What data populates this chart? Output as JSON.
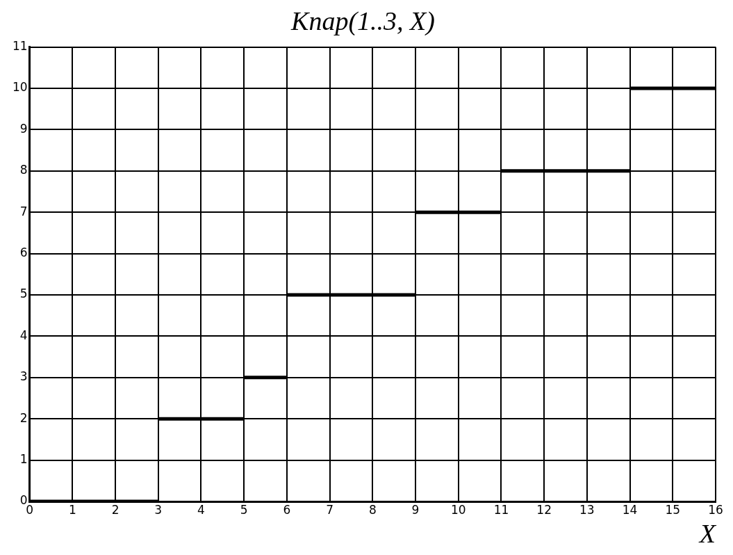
{
  "chart_data": {
    "type": "line",
    "title": "Knap(1..3, X)",
    "xlabel": "X",
    "xlim": [
      0,
      16
    ],
    "ylim": [
      0,
      11
    ],
    "xticks": [
      0,
      1,
      2,
      3,
      4,
      5,
      6,
      7,
      8,
      9,
      10,
      11,
      12,
      13,
      14,
      15,
      16
    ],
    "yticks": [
      0,
      1,
      2,
      3,
      4,
      5,
      6,
      7,
      8,
      9,
      10,
      11
    ],
    "grid": true,
    "marker": "none",
    "series": [
      {
        "color": "#000000",
        "x": [
          0,
          3
        ],
        "values": [
          0,
          0
        ]
      },
      {
        "color": "#000000",
        "x": [
          3,
          5
        ],
        "values": [
          2,
          2
        ]
      },
      {
        "color": "#000000",
        "x": [
          5,
          6
        ],
        "values": [
          3,
          3
        ]
      },
      {
        "color": "#000000",
        "x": [
          6,
          9
        ],
        "values": [
          5,
          5
        ]
      },
      {
        "color": "#000000",
        "x": [
          9,
          11
        ],
        "values": [
          7,
          7
        ]
      },
      {
        "color": "#000000",
        "x": [
          11,
          14
        ],
        "values": [
          8,
          8
        ]
      },
      {
        "color": "#000000",
        "x": [
          14,
          16
        ],
        "values": [
          10,
          10
        ]
      }
    ]
  }
}
